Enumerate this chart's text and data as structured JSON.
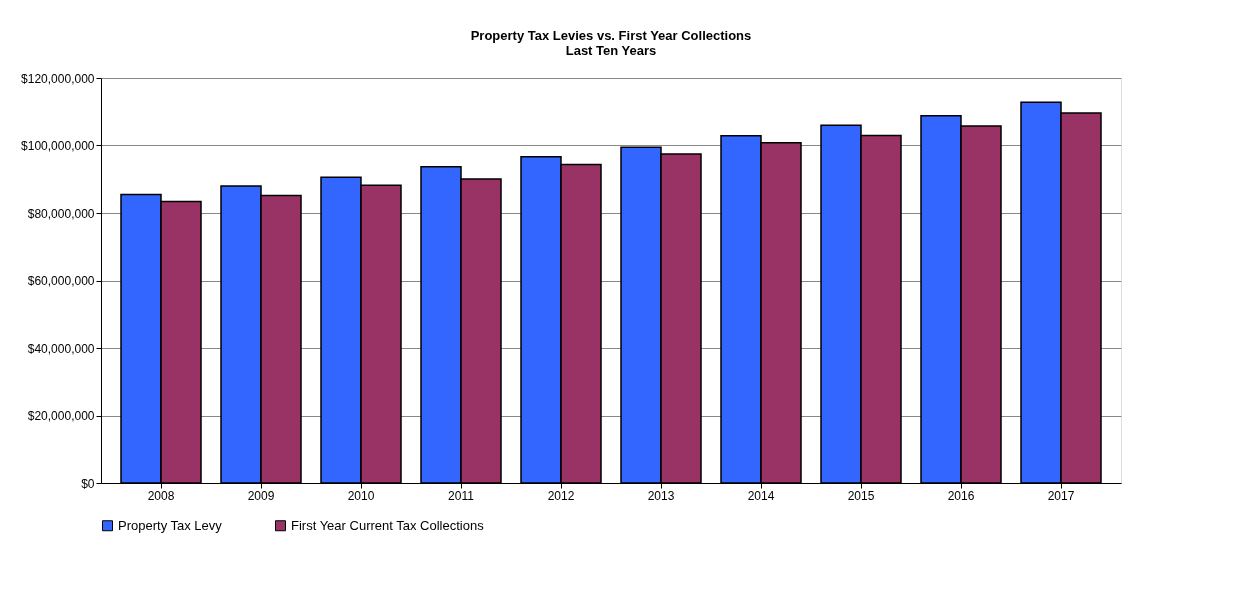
{
  "chart_data": {
    "type": "bar",
    "title": "Property Tax Levies vs. First Year Collections",
    "subtitle": "Last Ten Years",
    "categories": [
      "2008",
      "2009",
      "2010",
      "2011",
      "2012",
      "2013",
      "2014",
      "2015",
      "2016",
      "2017"
    ],
    "series": [
      {
        "name": "Property Tax Levy",
        "color": "#3366ff",
        "values": [
          85500000,
          88000000,
          90600000,
          93700000,
          96700000,
          99500000,
          102900000,
          106000000,
          108800000,
          112800000
        ]
      },
      {
        "name": "First Year Current Tax Collections",
        "color": "#993366",
        "values": [
          83400000,
          85200000,
          88200000,
          90100000,
          94400000,
          97500000,
          100800000,
          103000000,
          105800000,
          109600000
        ]
      }
    ],
    "ylim": [
      0,
      120000000
    ],
    "yticks": [
      {
        "value": 0,
        "label": "$0"
      },
      {
        "value": 20000000,
        "label": "$20,000,000"
      },
      {
        "value": 40000000,
        "label": "$40,000,000"
      },
      {
        "value": 60000000,
        "label": "$60,000,000"
      },
      {
        "value": 80000000,
        "label": "$80,000,000"
      },
      {
        "value": 100000000,
        "label": "$100,000,000"
      },
      {
        "value": 120000000,
        "label": "$120,000,000"
      }
    ],
    "grid": "y",
    "legend": "bottom"
  }
}
